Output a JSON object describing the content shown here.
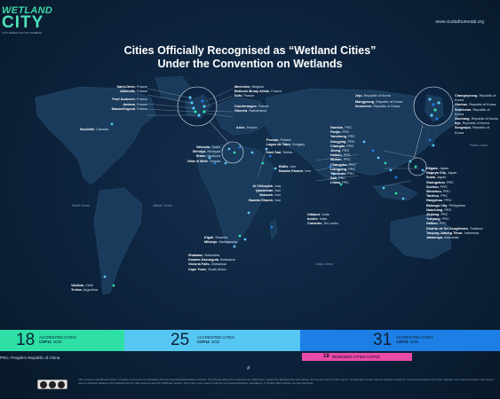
{
  "header": {
    "logo_line1": "WETLAND",
    "logo_line2": "CITY",
    "logo_tagline": "LATIN AMERICA AND THE CARIBBEAN",
    "url": "www.ciudadhumedal.org",
    "title_line1": "Cities Officially Recognised as “Wetland Cities”",
    "title_line2": "Under the Convention on Wetlands"
  },
  "colors": {
    "background": "#0c213a",
    "land": "#1b3b5c",
    "dot_light": "#56c7f2",
    "dot_blue": "#1d7fe6",
    "dot_green": "#2ee0a6",
    "accent_pink": "#e74aa8"
  },
  "oceans": [
    {
      "name": "Pacific Ocean"
    },
    {
      "name": "Atlantic Ocean"
    },
    {
      "name": "Indian Ocean"
    },
    {
      "name": "Pacific Ocean"
    }
  ],
  "groups": {
    "france": [
      {
        "city": "Saint-Omer",
        "country": "France"
      },
      {
        "city": "Abbeville",
        "country": "France"
      },
      {
        "city": "Pont Audemer",
        "country": "France"
      },
      {
        "city": "Amiens",
        "country": "France"
      },
      {
        "city": "Marais/Orgeuil",
        "country": "France"
      }
    ],
    "france_right": [
      {
        "city": "Mechelen",
        "country": "Belgium"
      },
      {
        "city": "Bethune-Bruay Artois",
        "country": "France"
      },
      {
        "city": "Sofo",
        "country": "France"
      },
      {
        "city": "Courteranges",
        "country": "France"
      },
      {
        "city": "Ginevra",
        "country": "Switzerland"
      }
    ],
    "europe_mid": [
      {
        "city": "Arles",
        "country": "France"
      },
      {
        "city": "Poznan",
        "country": "Poland"
      },
      {
        "city": "Lagos de Tatra",
        "country": "Hungary"
      },
      {
        "city": "Novi Sad",
        "country": "Serbia"
      }
    ],
    "middle_east": [
      {
        "city": "Bidlis",
        "country": "Iran"
      },
      {
        "city": "Bandar Khamir",
        "country": "Iran"
      },
      {
        "city": "Al Chibayish",
        "country": "Iraq"
      },
      {
        "city": "Qasdeman",
        "country": "Iran"
      },
      {
        "city": "Vasaneh",
        "country": "Iran"
      },
      {
        "city": "Bandar Khamir",
        "country": "Iran"
      }
    ],
    "africa_north": [
      {
        "city": "Valencia",
        "country": "Spain"
      },
      {
        "city": "Mehdya",
        "country": "Morocco"
      },
      {
        "city": "Ifrane",
        "country": "Morocco"
      },
      {
        "city": "Ghar el Melh",
        "country": "Tunisia"
      }
    ],
    "africa_south": [
      {
        "city": "Kigali",
        "country": "Rwanda"
      },
      {
        "city": "Mitsinjo",
        "country": "Madagascar"
      },
      {
        "city": "Shakawe",
        "country": "Botswana"
      },
      {
        "city": "Kasane-Kazungula",
        "country": "Botswana"
      },
      {
        "city": "Victoria Falls",
        "country": "Zimbabwe"
      },
      {
        "city": "Cape Town",
        "country": "South Africa"
      }
    ],
    "china": [
      {
        "city": "Haerbin",
        "country": "PRC"
      },
      {
        "city": "Panjin",
        "country": "PRC"
      },
      {
        "city": "Yancheng",
        "country": "PRC"
      },
      {
        "city": "Dongying",
        "country": "PRC"
      },
      {
        "city": "Changde",
        "country": "PRC"
      },
      {
        "city": "Jining",
        "country": "PRC"
      },
      {
        "city": "Haikou",
        "country": "PRC"
      },
      {
        "city": "Wuhan",
        "country": "PRC"
      },
      {
        "city": "Changshu",
        "country": "PRC"
      },
      {
        "city": "Liangping",
        "country": "PRC"
      },
      {
        "city": "Yinchuan",
        "country": "PRC"
      },
      {
        "city": "Dali",
        "country": "PRC"
      },
      {
        "city": "Lhasa",
        "country": "PRC"
      }
    ],
    "korea_japan": [
      {
        "city": "Jeju",
        "country": "Republic of Korea"
      },
      {
        "city": "Mangyeong",
        "country": "Republic of Korea"
      },
      {
        "city": "Seocheon",
        "country": "Republic of Korea"
      }
    ],
    "korea_right": [
      {
        "city": "Changnyeong",
        "country": "Republic of Korea"
      },
      {
        "city": "Gimhae",
        "country": "Republic of Korea"
      },
      {
        "city": "Suncheon",
        "country": "Republic of Korea"
      },
      {
        "city": "Gochang",
        "country": "Republic of Korea"
      },
      {
        "city": "Inje",
        "country": "Republic of Korea"
      },
      {
        "city": "Seogwipo",
        "country": "Republic of Korea"
      }
    ],
    "east_asia": [
      {
        "city": "Niigata",
        "country": "Japan"
      },
      {
        "city": "Nagoya City",
        "country": "Japan"
      },
      {
        "city": "Suwa",
        "country": "Japan"
      },
      {
        "city": "Guangzhou",
        "country": "PRC"
      },
      {
        "city": "Suzhou",
        "country": "PRC"
      },
      {
        "city": "Wenzhou",
        "country": "PRC"
      },
      {
        "city": "Taizhou",
        "country": "PRC"
      },
      {
        "city": "Hangzhou",
        "country": "PRC"
      },
      {
        "city": "Baluogo City",
        "country": "Philippines"
      },
      {
        "city": "Nanchang",
        "country": "PRC"
      },
      {
        "city": "Jiujiang",
        "country": "PRC"
      },
      {
        "city": "Yueyang",
        "country": "PRC"
      },
      {
        "city": "Haikou",
        "country": "PRC"
      },
      {
        "city": "Distrito de Sri Songkhram",
        "country": "Thailand"
      },
      {
        "city": "Tanjung Jabung Timur",
        "country": "Indonesia"
      },
      {
        "city": "Jabarraya",
        "country": "Indonesia"
      }
    ],
    "south_asia": [
      {
        "city": "Udaipur",
        "country": "India"
      },
      {
        "city": "Indore",
        "country": "India"
      },
      {
        "city": "Colombo",
        "country": "Sri Lanka"
      }
    ],
    "americas": [
      {
        "city": "Sackville",
        "country": "Canada"
      },
      {
        "city": "Valdivia",
        "country": "Chile"
      },
      {
        "city": "Trelew",
        "country": "Argentina"
      }
    ]
  },
  "bars": [
    {
      "number": "18",
      "label": "ACCREDITED CITIES",
      "cop": "COP13",
      "year": "2018"
    },
    {
      "number": "25",
      "label": "ACCREDITED CITIES",
      "cop": "COP14",
      "year": "2022"
    },
    {
      "number": "31",
      "label": "ACCREDITED CITIES",
      "cop": "COP15",
      "year": "2025"
    }
  ],
  "renewed": {
    "number": "18",
    "label": "RENEWED CITIES COP15"
  },
  "footnote": "PRC: People’s Republic of China",
  "hash": "#",
  "legal": "This content is distributed under a Creative Commons CC Attribution-NonCommercial-NoDerivatives License. This license allows the material to be distributed, copied and displayed by third parties, as long as proper credit is given. No derivative works may be created or used for commercial purposes from this material. Our brand and logos may only be used in activities related to the Wetland City for Latin America and the Caribbean project. They may not be used to support commercial activities, campaigns, or funding effort without our prior approval."
}
